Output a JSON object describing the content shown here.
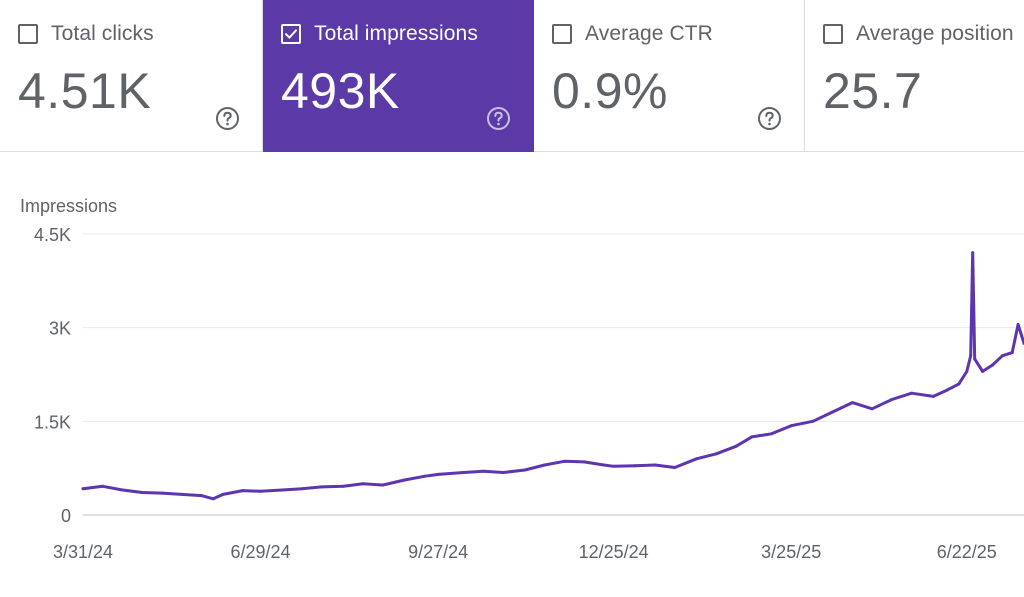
{
  "cards": [
    {
      "label": "Total clicks",
      "value": "4.51K",
      "checked": false
    },
    {
      "label": "Total impressions",
      "value": "493K",
      "checked": true
    },
    {
      "label": "Average CTR",
      "value": "0.9%",
      "checked": false
    },
    {
      "label": "Average position",
      "value": "25.7",
      "checked": false
    }
  ],
  "colors": {
    "accent": "#5b3aa8",
    "line": "#5e35b1",
    "grid": "#e8eaed",
    "text": "#5f6368"
  },
  "icons": {
    "checkbox": "checkbox-icon",
    "help": "help-circle-icon"
  },
  "chart_data": {
    "type": "line",
    "ylabel": "Impressions",
    "ylim": [
      0,
      4500
    ],
    "y_ticks": [
      0,
      1500,
      3000,
      4500
    ],
    "y_tick_labels": [
      "0",
      "1.5K",
      "3K",
      "4.5K"
    ],
    "x_tick_labels": [
      "3/31/24",
      "6/29/24",
      "9/27/24",
      "12/25/24",
      "3/25/25",
      "6/22/25"
    ],
    "x_start": "2024-03-31",
    "x_end": "2025-07-21",
    "grid": true,
    "series": [
      {
        "color": "#5e35b1",
        "points": [
          [
            "2024-03-31",
            420
          ],
          [
            "2024-04-10",
            460
          ],
          [
            "2024-04-20",
            400
          ],
          [
            "2024-04-30",
            360
          ],
          [
            "2024-05-10",
            350
          ],
          [
            "2024-05-20",
            330
          ],
          [
            "2024-05-30",
            310
          ],
          [
            "2024-06-05",
            260
          ],
          [
            "2024-06-10",
            330
          ],
          [
            "2024-06-20",
            390
          ],
          [
            "2024-06-29",
            380
          ],
          [
            "2024-07-10",
            400
          ],
          [
            "2024-07-20",
            420
          ],
          [
            "2024-07-30",
            450
          ],
          [
            "2024-08-10",
            460
          ],
          [
            "2024-08-20",
            500
          ],
          [
            "2024-08-30",
            480
          ],
          [
            "2024-09-10",
            560
          ],
          [
            "2024-09-20",
            620
          ],
          [
            "2024-09-27",
            650
          ],
          [
            "2024-10-10",
            680
          ],
          [
            "2024-10-20",
            700
          ],
          [
            "2024-10-30",
            680
          ],
          [
            "2024-11-10",
            720
          ],
          [
            "2024-11-20",
            800
          ],
          [
            "2024-11-30",
            860
          ],
          [
            "2024-12-10",
            850
          ],
          [
            "2024-12-20",
            800
          ],
          [
            "2024-12-25",
            780
          ],
          [
            "2025-01-05",
            790
          ],
          [
            "2025-01-15",
            800
          ],
          [
            "2025-01-25",
            760
          ],
          [
            "2025-02-05",
            900
          ],
          [
            "2025-02-15",
            980
          ],
          [
            "2025-02-25",
            1100
          ],
          [
            "2025-03-05",
            1250
          ],
          [
            "2025-03-15",
            1300
          ],
          [
            "2025-03-25",
            1430
          ],
          [
            "2025-04-05",
            1500
          ],
          [
            "2025-04-15",
            1650
          ],
          [
            "2025-04-25",
            1800
          ],
          [
            "2025-05-05",
            1700
          ],
          [
            "2025-05-15",
            1850
          ],
          [
            "2025-05-25",
            1950
          ],
          [
            "2025-06-05",
            1900
          ],
          [
            "2025-06-12",
            2000
          ],
          [
            "2025-06-18",
            2100
          ],
          [
            "2025-06-22",
            2300
          ],
          [
            "2025-06-24",
            2550
          ],
          [
            "2025-06-25",
            4200
          ],
          [
            "2025-06-26",
            2500
          ],
          [
            "2025-06-30",
            2300
          ],
          [
            "2025-07-05",
            2400
          ],
          [
            "2025-07-10",
            2550
          ],
          [
            "2025-07-15",
            2600
          ],
          [
            "2025-07-18",
            3050
          ],
          [
            "2025-07-21",
            2750
          ]
        ]
      }
    ]
  }
}
